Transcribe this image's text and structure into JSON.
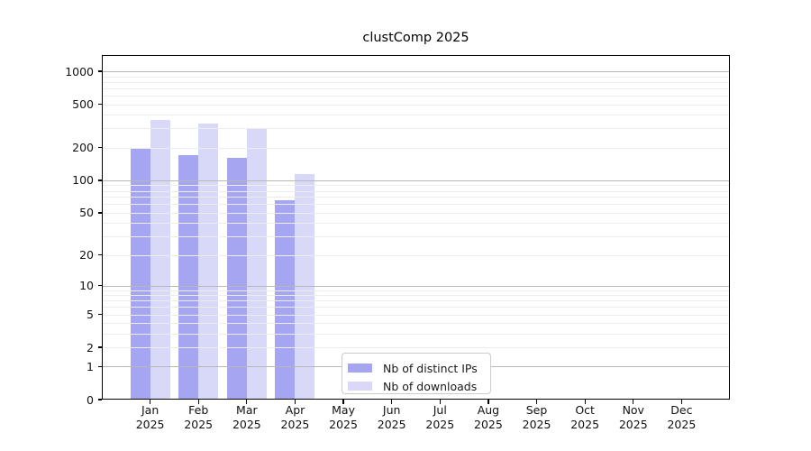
{
  "figure": {
    "background": "#ffffff"
  },
  "chart_data": {
    "type": "bar",
    "title": "clustComp 2025",
    "categories": [
      "Jan",
      "Feb",
      "Mar",
      "Apr",
      "May",
      "Jun",
      "Jul",
      "Aug",
      "Sep",
      "Oct",
      "Nov",
      "Dec"
    ],
    "category_year": "2025",
    "series": [
      {
        "name": "Nb of distinct IPs",
        "color": "#a5a5f2",
        "values": [
          200,
          170,
          160,
          65,
          null,
          null,
          null,
          null,
          null,
          null,
          null,
          null
        ]
      },
      {
        "name": "Nb of downloads",
        "color": "#d8d8f8",
        "values": [
          360,
          330,
          300,
          113,
          null,
          null,
          null,
          null,
          null,
          null,
          null,
          null
        ]
      }
    ],
    "xlabel": "",
    "ylabel": "",
    "yscale": "log(1+x)",
    "y_tick_labels": [
      0,
      1,
      2,
      5,
      10,
      20,
      50,
      100,
      200,
      500,
      1000
    ],
    "ylim": [
      0,
      1400
    ],
    "grid": "horizontal major+minor",
    "legend_position": "inside lower-center",
    "colors": {
      "major_grid": "#b8b8b8",
      "minor_grid": "#ededed",
      "axis": "#000000",
      "text": "#111111",
      "legend_border": "#cccccc"
    }
  }
}
